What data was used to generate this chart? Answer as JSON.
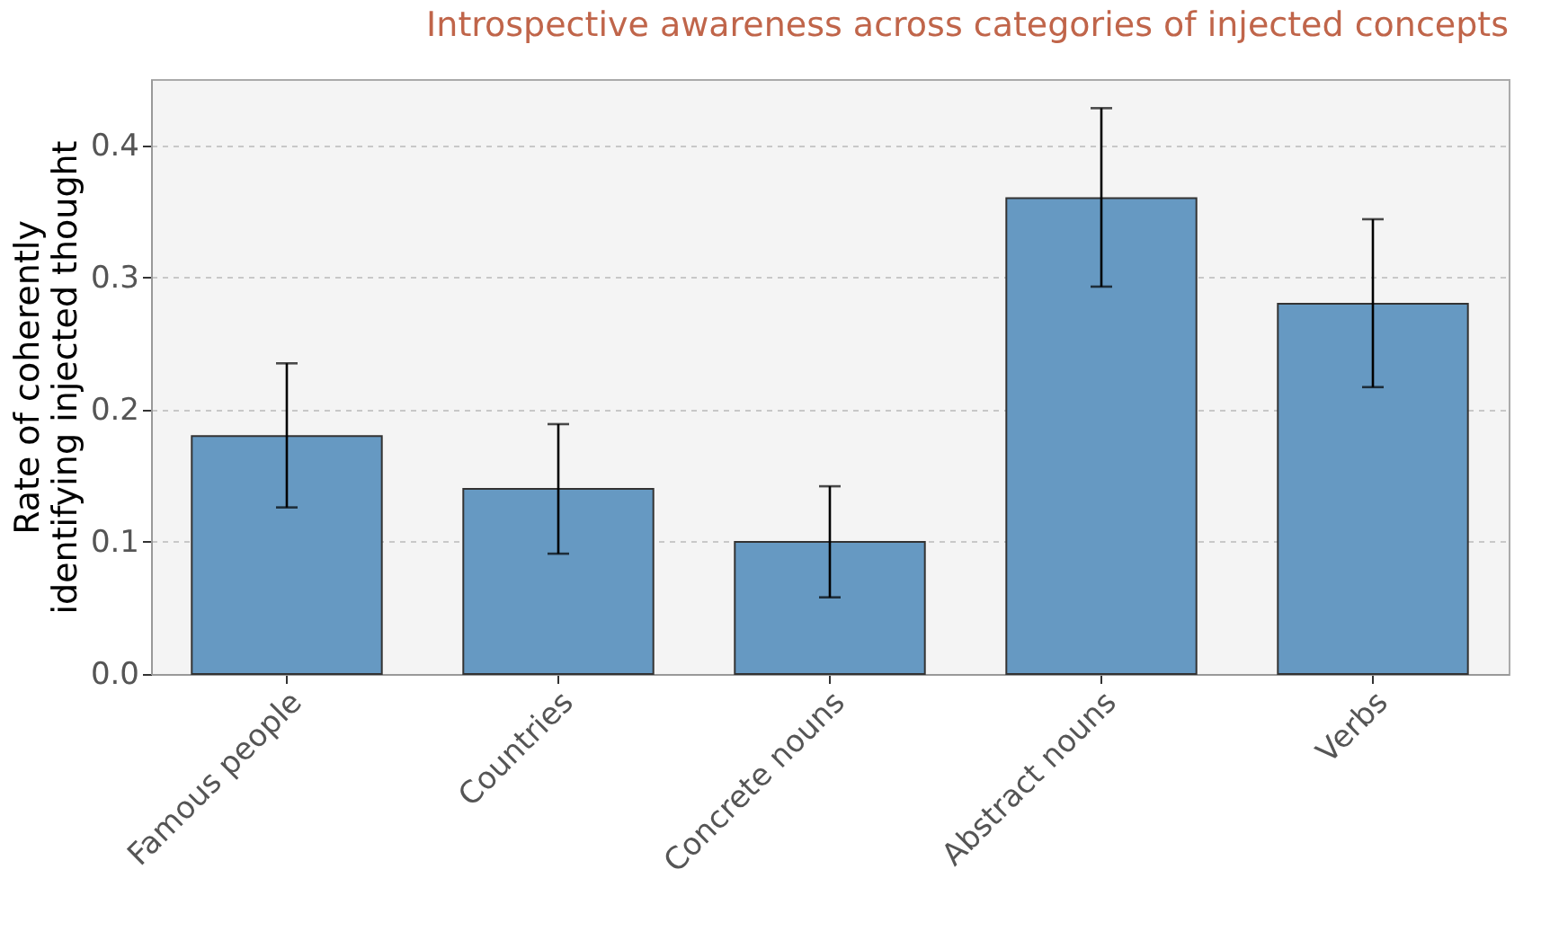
{
  "chart_data": {
    "type": "bar",
    "title": "Introspective awareness across categories of injected concepts",
    "ylabel": "Rate of coherently\nidentifying injected thought",
    "categories": [
      "Famous people",
      "Countries",
      "Concrete nouns",
      "Abstract nouns",
      "Verbs"
    ],
    "values": [
      0.18,
      0.14,
      0.1,
      0.36,
      0.28
    ],
    "errors": [
      [
        0.126,
        0.235
      ],
      [
        0.091,
        0.189
      ],
      [
        0.058,
        0.142
      ],
      [
        0.293,
        0.428
      ],
      [
        0.217,
        0.344
      ]
    ],
    "color": "#6699c2",
    "ylim": [
      0,
      0.45
    ],
    "yticks": [
      {
        "value": 0,
        "label": "0.0"
      },
      0.1,
      0.2,
      0.3,
      0.4
    ],
    "grid": "y"
  }
}
